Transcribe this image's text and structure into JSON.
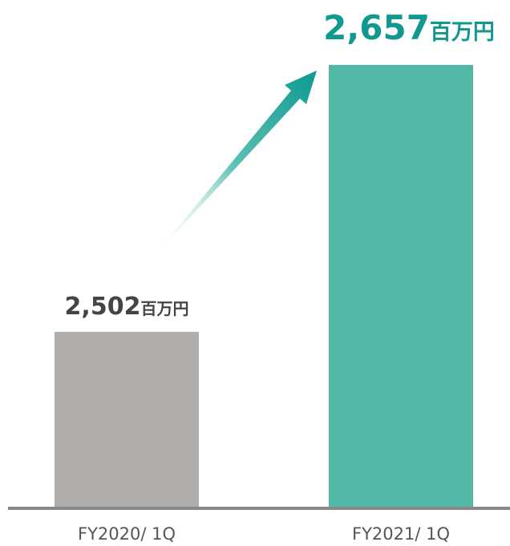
{
  "chart_data": {
    "type": "bar",
    "categories": [
      "FY2020/ 1Q",
      "FY2021/ 1Q"
    ],
    "values": [
      2502,
      2657
    ],
    "value_labels": [
      "2,502",
      "2,657"
    ],
    "unit": "百万円",
    "colors": [
      "#b0adab",
      "#52b7a4"
    ],
    "label_colors": [
      "#444444",
      "#12998f"
    ],
    "ylim": [
      2400,
      2660
    ]
  }
}
